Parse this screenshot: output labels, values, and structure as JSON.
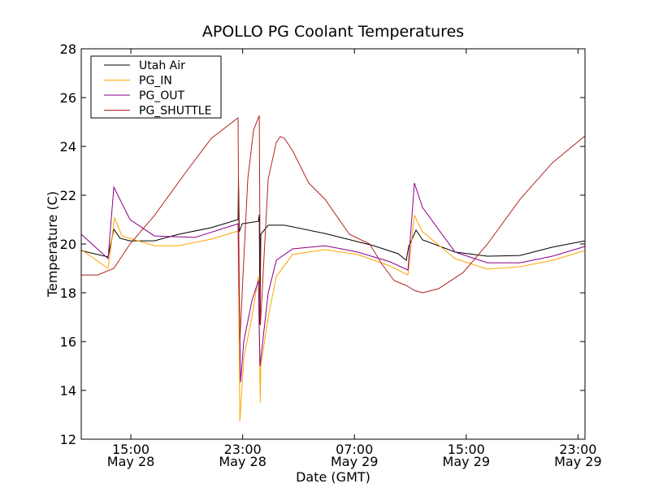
{
  "chart_data": {
    "type": "line",
    "title": "APOLLO PG Coolant Temperatures",
    "xlabel": "Date (GMT)",
    "ylabel": "Temperature (C)",
    "x_unit": "hours since May 28 00:00 GMT",
    "xlim": [
      11.45,
      47.5
    ],
    "ylim": [
      12,
      28
    ],
    "yticks": [
      12,
      14,
      16,
      18,
      20,
      22,
      24,
      26,
      28
    ],
    "xticks": [
      {
        "x": 15,
        "time": "15:00",
        "date": "May 28"
      },
      {
        "x": 23,
        "time": "23:00",
        "date": "May 28"
      },
      {
        "x": 31,
        "time": "07:00",
        "date": "May 29"
      },
      {
        "x": 39,
        "time": "15:00",
        "date": "May 29"
      },
      {
        "x": 47,
        "time": "23:00",
        "date": "May 29"
      }
    ],
    "legend_position": "top-left",
    "grid": false,
    "series": [
      {
        "name": "Utah Air",
        "color": "#000000",
        "points": [
          [
            11.45,
            19.73
          ],
          [
            13.37,
            19.47
          ],
          [
            13.78,
            20.6
          ],
          [
            14.24,
            20.23
          ],
          [
            14.94,
            20.13
          ],
          [
            16.69,
            20.13
          ],
          [
            18.43,
            20.4
          ],
          [
            20.76,
            20.67
          ],
          [
            22.67,
            21.0
          ],
          [
            22.7,
            22.7
          ],
          [
            22.76,
            20.5
          ],
          [
            22.97,
            20.83
          ],
          [
            24.13,
            20.93
          ],
          [
            24.19,
            21.2
          ],
          [
            24.24,
            16.7
          ],
          [
            24.3,
            20.4
          ],
          [
            24.83,
            20.77
          ],
          [
            25.99,
            20.77
          ],
          [
            28.9,
            20.43
          ],
          [
            32.38,
            19.93
          ],
          [
            34.13,
            19.6
          ],
          [
            34.71,
            19.33
          ],
          [
            34.88,
            19.9
          ],
          [
            35.41,
            20.57
          ],
          [
            35.87,
            20.17
          ],
          [
            38.2,
            19.67
          ],
          [
            40.52,
            19.5
          ],
          [
            42.85,
            19.53
          ],
          [
            45.17,
            19.87
          ],
          [
            47.5,
            20.13
          ]
        ]
      },
      {
        "name": "PG_IN",
        "color": "#ffa500",
        "points": [
          [
            11.45,
            19.77
          ],
          [
            13.37,
            19.0
          ],
          [
            13.84,
            21.07
          ],
          [
            14.36,
            20.33
          ],
          [
            16.69,
            19.93
          ],
          [
            18.43,
            19.93
          ],
          [
            20.76,
            20.2
          ],
          [
            22.67,
            20.53
          ],
          [
            22.8,
            12.73
          ],
          [
            23.08,
            15.33
          ],
          [
            23.66,
            17.0
          ],
          [
            24.13,
            18.67
          ],
          [
            24.26,
            13.5
          ],
          [
            24.3,
            15.0
          ],
          [
            24.83,
            17.0
          ],
          [
            25.41,
            18.67
          ],
          [
            26.57,
            19.57
          ],
          [
            28.9,
            19.77
          ],
          [
            31.22,
            19.57
          ],
          [
            33.55,
            19.1
          ],
          [
            34.83,
            18.73
          ],
          [
            35.29,
            21.17
          ],
          [
            35.87,
            20.5
          ],
          [
            38.2,
            19.4
          ],
          [
            40.52,
            18.97
          ],
          [
            42.85,
            19.07
          ],
          [
            45.17,
            19.33
          ],
          [
            47.5,
            19.73
          ]
        ]
      },
      {
        "name": "PG_OUT",
        "color": "#8b008b",
        "points": [
          [
            11.45,
            20.4
          ],
          [
            13.37,
            19.4
          ],
          [
            13.78,
            22.33
          ],
          [
            14.94,
            21.0
          ],
          [
            16.69,
            20.33
          ],
          [
            19.59,
            20.27
          ],
          [
            22.67,
            20.83
          ],
          [
            22.85,
            14.33
          ],
          [
            23.08,
            16.0
          ],
          [
            23.66,
            17.67
          ],
          [
            24.13,
            18.5
          ],
          [
            24.24,
            15.0
          ],
          [
            24.83,
            18.0
          ],
          [
            25.41,
            19.33
          ],
          [
            26.57,
            19.8
          ],
          [
            28.9,
            19.93
          ],
          [
            31.22,
            19.67
          ],
          [
            33.55,
            19.27
          ],
          [
            34.83,
            18.93
          ],
          [
            35.29,
            22.5
          ],
          [
            35.87,
            21.5
          ],
          [
            38.2,
            19.67
          ],
          [
            40.52,
            19.23
          ],
          [
            42.85,
            19.23
          ],
          [
            45.17,
            19.5
          ],
          [
            47.5,
            19.9
          ]
        ]
      },
      {
        "name": "PG_SHUTTLE",
        "color": "#b22222",
        "points": [
          [
            11.45,
            18.73
          ],
          [
            12.62,
            18.73
          ],
          [
            13.78,
            19.0
          ],
          [
            14.94,
            20.0
          ],
          [
            16.69,
            21.17
          ],
          [
            19.01,
            23.0
          ],
          [
            20.76,
            24.33
          ],
          [
            22.67,
            25.17
          ],
          [
            22.73,
            20.0
          ],
          [
            22.8,
            16.0
          ],
          [
            23.08,
            19.33
          ],
          [
            23.37,
            22.67
          ],
          [
            23.78,
            24.67
          ],
          [
            24.19,
            25.27
          ],
          [
            24.24,
            20.0
          ],
          [
            24.27,
            16.67
          ],
          [
            24.83,
            22.67
          ],
          [
            25.41,
            24.17
          ],
          [
            25.7,
            24.4
          ],
          [
            25.99,
            24.33
          ],
          [
            26.57,
            23.83
          ],
          [
            27.73,
            22.5
          ],
          [
            28.9,
            21.83
          ],
          [
            30.64,
            20.4
          ],
          [
            32.09,
            20.0
          ],
          [
            32.97,
            19.17
          ],
          [
            33.84,
            18.5
          ],
          [
            34.71,
            18.3
          ],
          [
            35.29,
            18.1
          ],
          [
            35.87,
            18.0
          ],
          [
            37.03,
            18.17
          ],
          [
            38.78,
            18.83
          ],
          [
            40.52,
            20.0
          ],
          [
            42.85,
            21.83
          ],
          [
            45.17,
            23.33
          ],
          [
            47.5,
            24.43
          ]
        ]
      }
    ]
  }
}
